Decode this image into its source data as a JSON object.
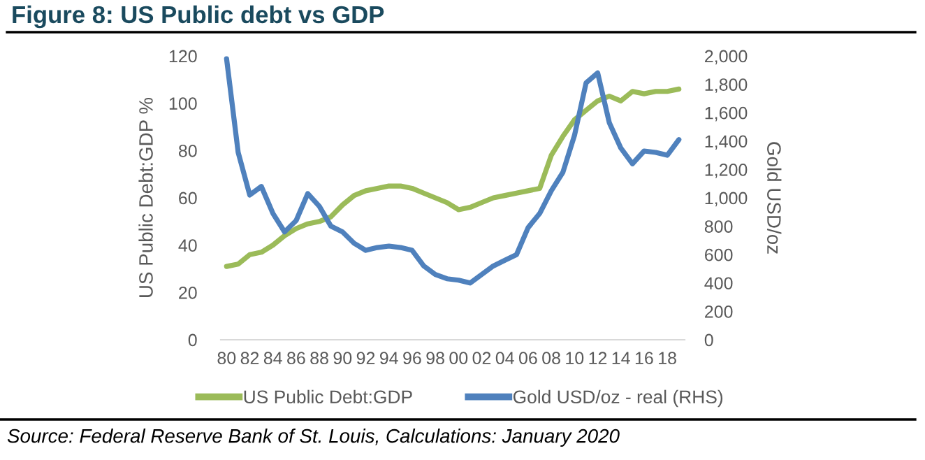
{
  "chart_data": {
    "type": "line",
    "title": "Figure 8: US Public debt vs GDP",
    "ylabel": "US Public Debt:GDP %",
    "y2label": "Gold USD/oz",
    "categories": [
      "80",
      null,
      "82",
      null,
      "84",
      null,
      "86",
      null,
      "88",
      null,
      "90",
      null,
      "92",
      null,
      "94",
      null,
      "96",
      null,
      "98",
      null,
      "00",
      null,
      "02",
      null,
      "04",
      null,
      "06",
      null,
      "08",
      null,
      "10",
      null,
      "12",
      null,
      "14",
      null,
      "16",
      null,
      "18",
      null
    ],
    "series": [
      {
        "name": "US Public Debt:GDP",
        "color": "#9bbb59",
        "values": [
          31,
          32,
          36,
          37,
          40,
          44,
          47,
          49,
          50,
          52,
          57,
          61,
          63,
          64,
          65,
          65,
          64,
          62,
          60,
          58,
          55,
          56,
          58,
          60,
          61,
          62,
          63,
          64,
          78,
          86,
          93,
          97,
          101,
          103,
          101,
          105,
          104,
          105,
          105,
          106
        ]
      },
      {
        "name": "Gold USD/oz - real (RHS)",
        "color": "#4f81bd",
        "axis": "y2",
        "values": [
          1980,
          1320,
          1020,
          1080,
          890,
          760,
          840,
          1030,
          940,
          800,
          760,
          680,
          630,
          650,
          660,
          650,
          630,
          520,
          460,
          430,
          420,
          400,
          460,
          520,
          560,
          600,
          790,
          890,
          1050,
          1180,
          1440,
          1810,
          1880,
          1530,
          1350,
          1240,
          1330,
          1320,
          1300,
          1410
        ]
      }
    ],
    "ylim": [
      0,
      120
    ],
    "yticks": [
      0,
      20,
      40,
      60,
      80,
      100,
      120
    ],
    "y2lim": [
      0,
      2000
    ],
    "y2ticks": [
      0,
      200,
      400,
      600,
      800,
      {
        "value": 1000,
        "label": "1,000"
      },
      {
        "value": 1200,
        "label": "1,200"
      },
      {
        "value": 1400,
        "label": "1,400"
      },
      {
        "value": 1600,
        "label": "1,600"
      },
      {
        "value": 1800,
        "label": "1,800"
      },
      {
        "value": 2000,
        "label": "2,000"
      }
    ],
    "legend": "bottom",
    "line_style": "solid",
    "annotations": [
      "Source: Federal Reserve Bank of St. Louis, Calculations: January 2020"
    ]
  }
}
